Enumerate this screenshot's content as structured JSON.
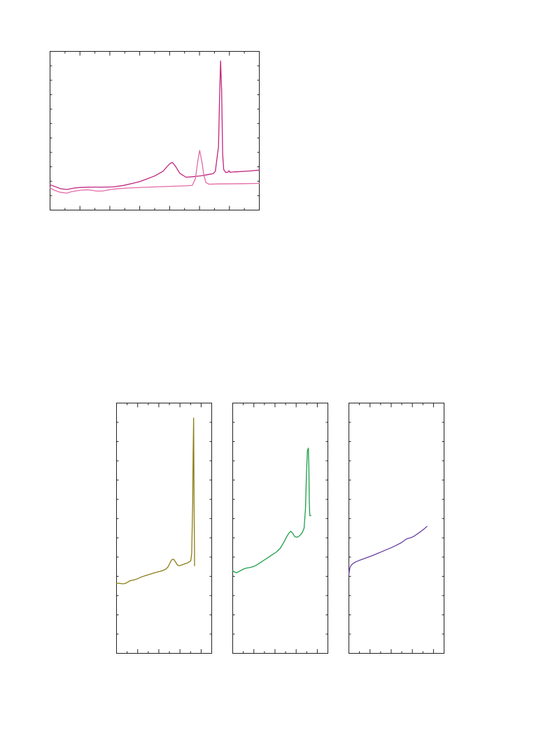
{
  "chart_data": [
    {
      "type": "line",
      "title": "",
      "xlabel": "",
      "ylabel": "",
      "xlim": [
        0,
        100
      ],
      "ylim": [
        0,
        100
      ],
      "grid": false,
      "x_minor_ticks": 14,
      "y_minor_ticks": 11,
      "series": [
        {
          "color": "#c0267e",
          "x": [
            0,
            2,
            5,
            8,
            10,
            12,
            15,
            20,
            25,
            30,
            35,
            40,
            43,
            46,
            50,
            54,
            56,
            57.5,
            58.5,
            60,
            62,
            65,
            68,
            70,
            72,
            74,
            76,
            78,
            79,
            80.5,
            81,
            81.5,
            82,
            82.5,
            83,
            84,
            85,
            85.5,
            86,
            88,
            90,
            95,
            100
          ],
          "y": [
            16,
            15,
            13.5,
            13,
            13.5,
            14,
            14.3,
            14.5,
            14.5,
            14.6,
            15.5,
            17,
            18,
            19.5,
            21.5,
            24.5,
            27.5,
            29.5,
            30,
            27.5,
            23.2,
            20.7,
            21,
            21.3,
            21.6,
            22,
            22.5,
            23,
            24.5,
            40,
            70,
            94,
            75,
            35,
            25.5,
            23.7,
            23.9,
            24.8,
            23.8,
            24.1,
            24.2,
            24.6,
            25.2
          ]
        },
        {
          "color": "#e36aa6",
          "x": [
            0,
            2,
            5,
            8,
            10,
            12,
            15,
            18,
            20,
            22,
            25,
            30,
            35,
            40,
            50,
            60,
            65,
            68,
            69.5,
            70.5,
            71.5,
            72.5,
            73.5,
            74.5,
            76,
            80,
            90,
            100
          ],
          "y": [
            14,
            12.5,
            11.2,
            10.7,
            11.5,
            12,
            12.6,
            12.8,
            12.5,
            12,
            12,
            13.2,
            13.7,
            14.1,
            14.6,
            15.1,
            15.3,
            15.6,
            20,
            30,
            37.6,
            31,
            22,
            17.3,
            16.3,
            16.5,
            16.6,
            16.8
          ]
        }
      ]
    },
    {
      "type": "line",
      "title": "",
      "xlabel": "",
      "ylabel": "",
      "xlim": [
        0,
        100
      ],
      "ylim": [
        0,
        100
      ],
      "grid": false,
      "x_minor_ticks": 9,
      "y_minor_ticks": 13,
      "series": [
        {
          "color": "#8b7d16",
          "x": [
            0,
            3,
            6,
            9,
            12,
            14,
            18,
            22,
            26,
            30,
            35,
            40,
            44,
            48,
            52,
            54,
            56,
            58,
            60,
            62,
            64,
            66,
            70,
            75,
            78,
            79,
            80,
            80.5,
            81,
            81.5,
            82
          ],
          "y": [
            28,
            28,
            27.8,
            27.9,
            28.5,
            29,
            29.3,
            29.8,
            30.5,
            31,
            31.6,
            32.2,
            32.6,
            33,
            33.7,
            34.5,
            36,
            37.4,
            37.6,
            36.5,
            35.3,
            35,
            35.5,
            36.2,
            37,
            40,
            60,
            80,
            94,
            60,
            35
          ]
        }
      ]
    },
    {
      "type": "line",
      "title": "",
      "xlabel": "",
      "ylabel": "",
      "xlim": [
        0,
        100
      ],
      "ylim": [
        0,
        100
      ],
      "grid": false,
      "x_minor_ticks": 9,
      "y_minor_ticks": 13,
      "series": [
        {
          "color": "#1f9e4a",
          "x": [
            0,
            2,
            4,
            6,
            9,
            12,
            15,
            18,
            22,
            26,
            30,
            34,
            38,
            42,
            46,
            50,
            54,
            57,
            59,
            61,
            63,
            65,
            67,
            69,
            71,
            73,
            75,
            76.5,
            77.5,
            78.5,
            79.5,
            80,
            80.5,
            81,
            82
          ],
          "y": [
            33,
            32.5,
            32.2,
            32.6,
            33.2,
            33.8,
            34.1,
            34.3,
            34.7,
            35.5,
            36.5,
            37.5,
            38.5,
            39.5,
            40.5,
            42,
            44.6,
            46.8,
            48,
            48.8,
            48,
            46.7,
            46.4,
            46.6,
            47.3,
            48.2,
            50,
            58,
            72,
            81,
            82,
            75,
            60,
            55,
            55
          ]
        }
      ]
    },
    {
      "type": "line",
      "title": "",
      "xlabel": "",
      "ylabel": "",
      "xlim": [
        0,
        100
      ],
      "ylim": [
        0,
        100
      ],
      "grid": false,
      "x_minor_ticks": 9,
      "y_minor_ticks": 13,
      "series": [
        {
          "color": "#6a3ea1",
          "x": [
            0,
            0.5,
            1,
            2,
            4,
            7,
            10,
            15,
            20,
            25,
            30,
            35,
            40,
            45,
            50,
            55,
            58,
            60,
            62,
            65,
            68,
            70,
            73,
            76,
            79,
            82
          ],
          "y": [
            31.5,
            33,
            34,
            35,
            35.8,
            36.5,
            37,
            37.7,
            38.4,
            39.1,
            39.9,
            40.7,
            41.5,
            42.3,
            43.2,
            44.2,
            45,
            45.6,
            45.9,
            46.2,
            46.7,
            47.2,
            48,
            48.8,
            49.7,
            50.7
          ]
        }
      ]
    }
  ]
}
